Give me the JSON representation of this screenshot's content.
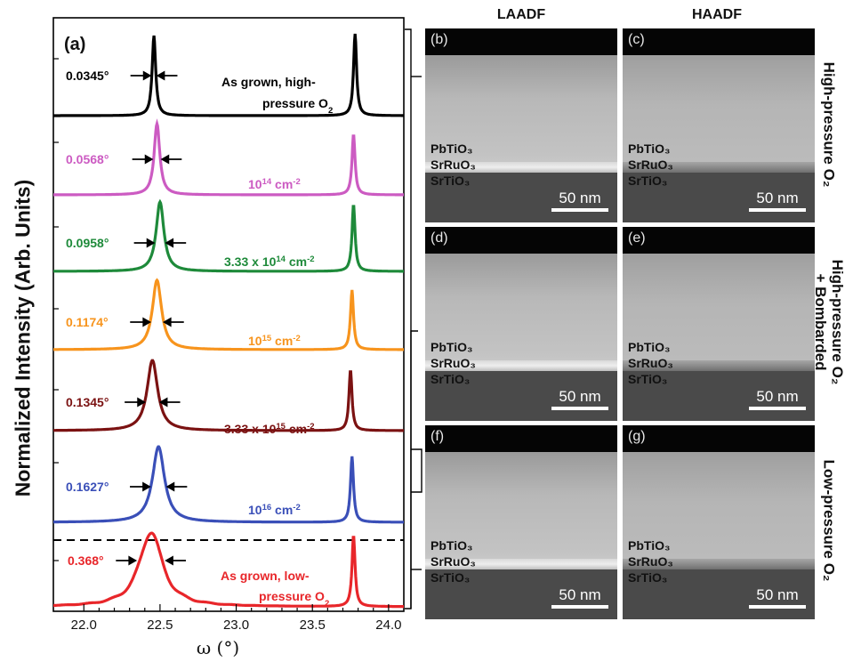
{
  "panel_label": "(a)",
  "y_axis_label": "Normalized Intensity (Arb. Units)",
  "x_axis_label": "ω (°)",
  "column_headers": [
    "LAADF",
    "HAADF"
  ],
  "row_labels": [
    "High-pressure O₂",
    "High-pressure O₂ + Bombarded",
    "Low-pressure O₂"
  ],
  "layer_names": [
    "PbTiO₃",
    "SrRuO₃",
    "SrTiO₃"
  ],
  "scale_bar_label": "50 nm",
  "image_panels": [
    {
      "letter": "(b)",
      "row": 0,
      "col": 0
    },
    {
      "letter": "(c)",
      "row": 0,
      "col": 1
    },
    {
      "letter": "(d)",
      "row": 1,
      "col": 0
    },
    {
      "letter": "(e)",
      "row": 1,
      "col": 1
    },
    {
      "letter": "(f)",
      "row": 2,
      "col": 0
    },
    {
      "letter": "(g)",
      "row": 2,
      "col": 1
    }
  ],
  "chart_data": {
    "type": "line",
    "xlabel": "ω (°)",
    "ylabel": "Normalized Intensity (Arb. Units)",
    "xlim": [
      21.8,
      24.1
    ],
    "x_ticks": [
      22.0,
      22.5,
      23.0,
      23.5,
      24.0
    ],
    "x_tick_labels": [
      "22.0",
      "22.5",
      "23.0",
      "23.5",
      "24.0"
    ],
    "series": [
      {
        "name": "As grown, high-pressure O₂",
        "fwhm_label": "0.0345°",
        "color": "#000000",
        "film_peak": 22.46,
        "substrate_peak": 23.78
      },
      {
        "name": "10¹⁴ cm⁻²",
        "fwhm_label": "0.0568°",
        "color": "#cc5bc2",
        "film_peak": 22.48,
        "substrate_peak": 23.77
      },
      {
        "name": "3.33 x 10¹⁴ cm⁻²",
        "fwhm_label": "0.0958°",
        "color": "#1e8a3a",
        "film_peak": 22.5,
        "substrate_peak": 23.77
      },
      {
        "name": "10¹⁵ cm⁻²",
        "fwhm_label": "0.1174°",
        "color": "#f7941d",
        "film_peak": 22.48,
        "substrate_peak": 23.76
      },
      {
        "name": "3.33 x 10¹⁵ cm⁻²",
        "fwhm_label": "0.1345°",
        "color": "#7b1212",
        "film_peak": 22.45,
        "substrate_peak": 23.75
      },
      {
        "name": "10¹⁶ cm⁻²",
        "fwhm_label": "0.1627°",
        "color": "#3a4fb8",
        "film_peak": 22.49,
        "substrate_peak": 23.76
      },
      {
        "name": "As grown, low-pressure O₂",
        "fwhm_label": "0.368°",
        "color": "#e8262a",
        "film_peak": 22.44,
        "substrate_peak": 23.77
      }
    ]
  }
}
